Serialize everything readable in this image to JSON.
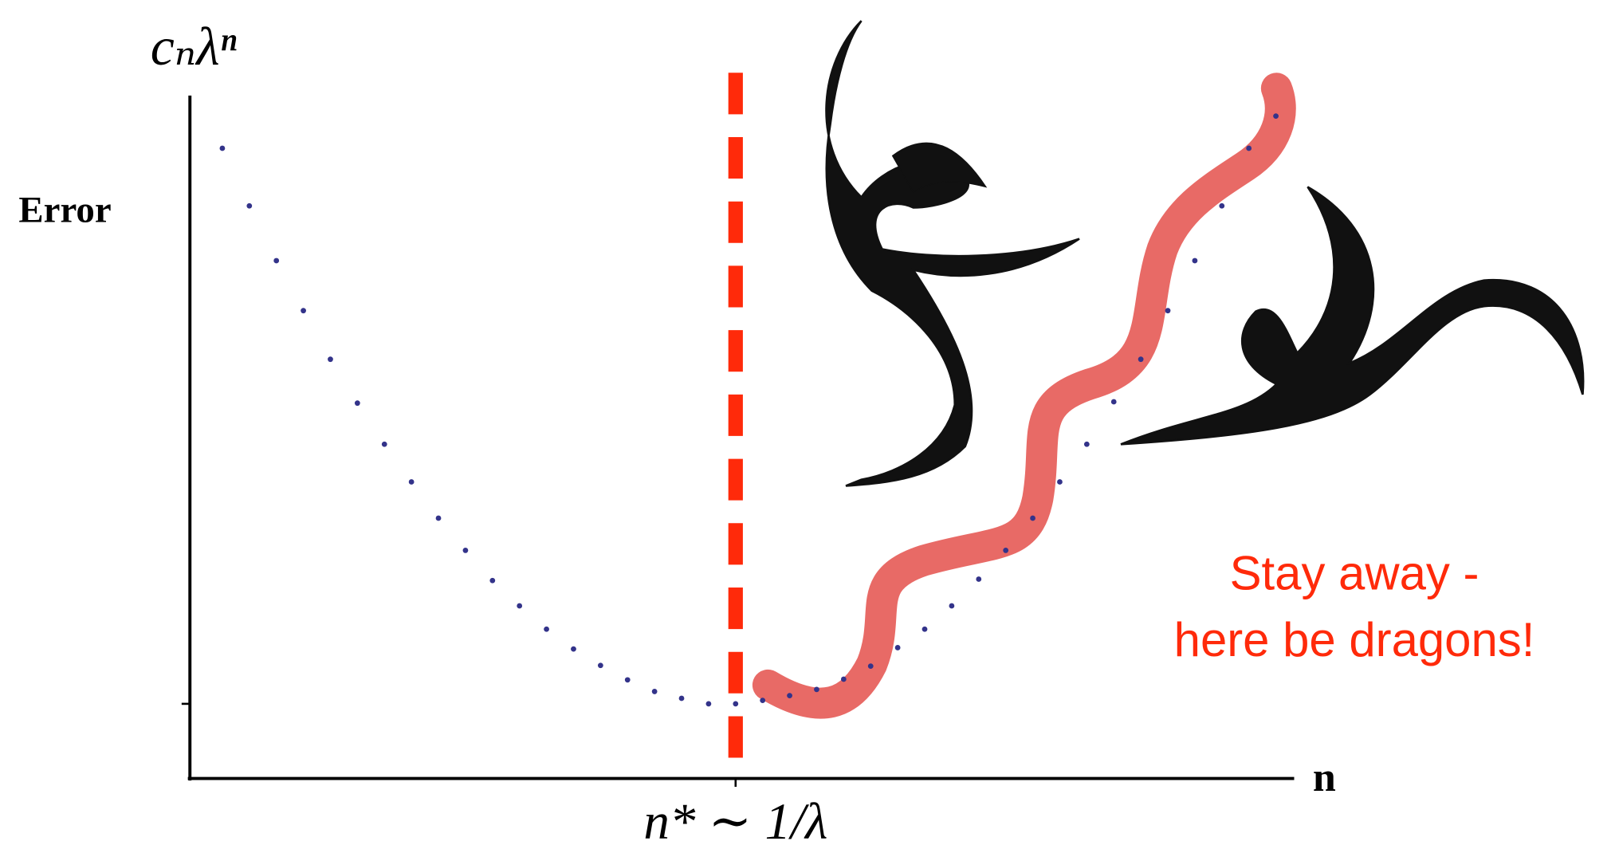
{
  "chart_data": {
    "type": "scatter",
    "y_label": "cₙλⁿ",
    "y_caption": "Error",
    "x_label": "n",
    "x": [
      1,
      2,
      3,
      4,
      5,
      6,
      7,
      8,
      9,
      10,
      11,
      12,
      13,
      14,
      15,
      16,
      17,
      18,
      19,
      20,
      21,
      22,
      23,
      24,
      25,
      26,
      27,
      28,
      29,
      30,
      31,
      32,
      33,
      34,
      35,
      36,
      37,
      38,
      39,
      40
    ],
    "values": [
      92.0,
      83.6,
      75.6,
      68.3,
      61.2,
      54.8,
      48.8,
      43.3,
      38.0,
      33.3,
      28.9,
      25.2,
      21.8,
      18.9,
      16.5,
      14.4,
      12.7,
      11.7,
      10.9,
      10.9,
      11.4,
      12.1,
      13.0,
      14.5,
      16.4,
      19.1,
      21.8,
      25.2,
      29.1,
      33.3,
      38.0,
      43.3,
      48.8,
      55.0,
      61.2,
      68.3,
      75.6,
      83.6,
      92.0,
      96.7
    ],
    "color": "#33338a",
    "xlim": [
      -0.2,
      40.6
    ],
    "ylim": [
      0,
      100
    ],
    "xticks": [
      {
        "value": 20,
        "label": "n* ∼ 1/λ"
      }
    ],
    "vline": {
      "value": 20,
      "color": "#ff2a0a"
    },
    "annotation": {
      "lines": [
        "Stay away -",
        "here be dragons!"
      ],
      "color": "#ff2a0a"
    }
  }
}
